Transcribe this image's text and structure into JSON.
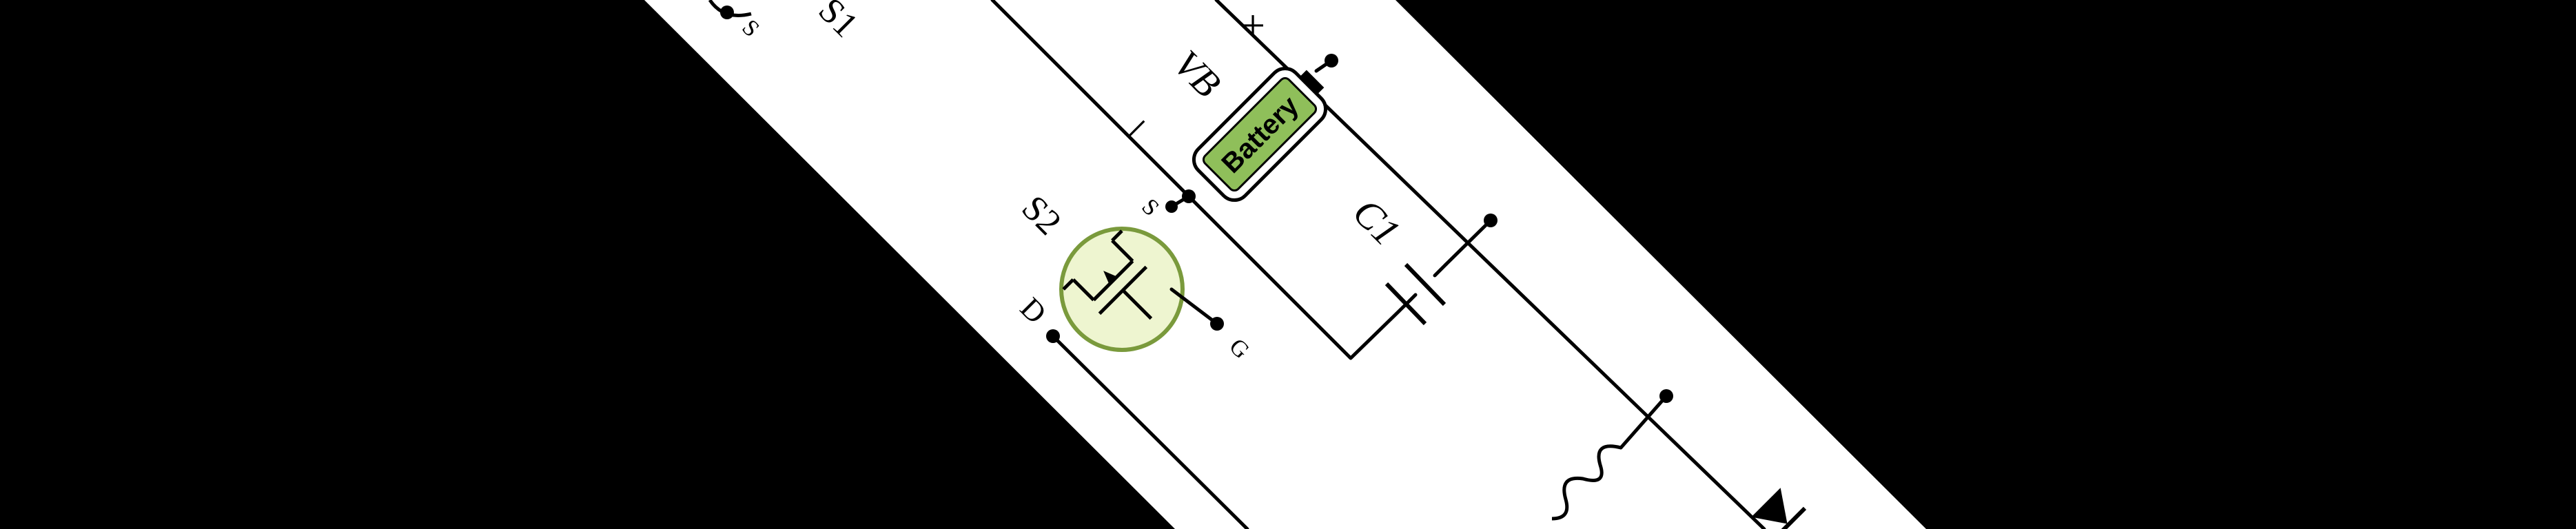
{
  "switch1": {
    "name": "S1",
    "pin_s": "S"
  },
  "switch2": {
    "name": "S2",
    "pin_s": "S",
    "pin_d": "D",
    "pin_g": "G"
  },
  "battery": {
    "name": "VB",
    "text": "Battery",
    "plus": "+",
    "minus": "−"
  },
  "capacitor": {
    "name": "C1"
  },
  "colors": {
    "background": "#000000",
    "strip": "#ffffff",
    "battery_fill": "#8fbf5a",
    "mosfet_fill": "#eef5d0",
    "mosfet_stroke": "#7a9a3c"
  }
}
